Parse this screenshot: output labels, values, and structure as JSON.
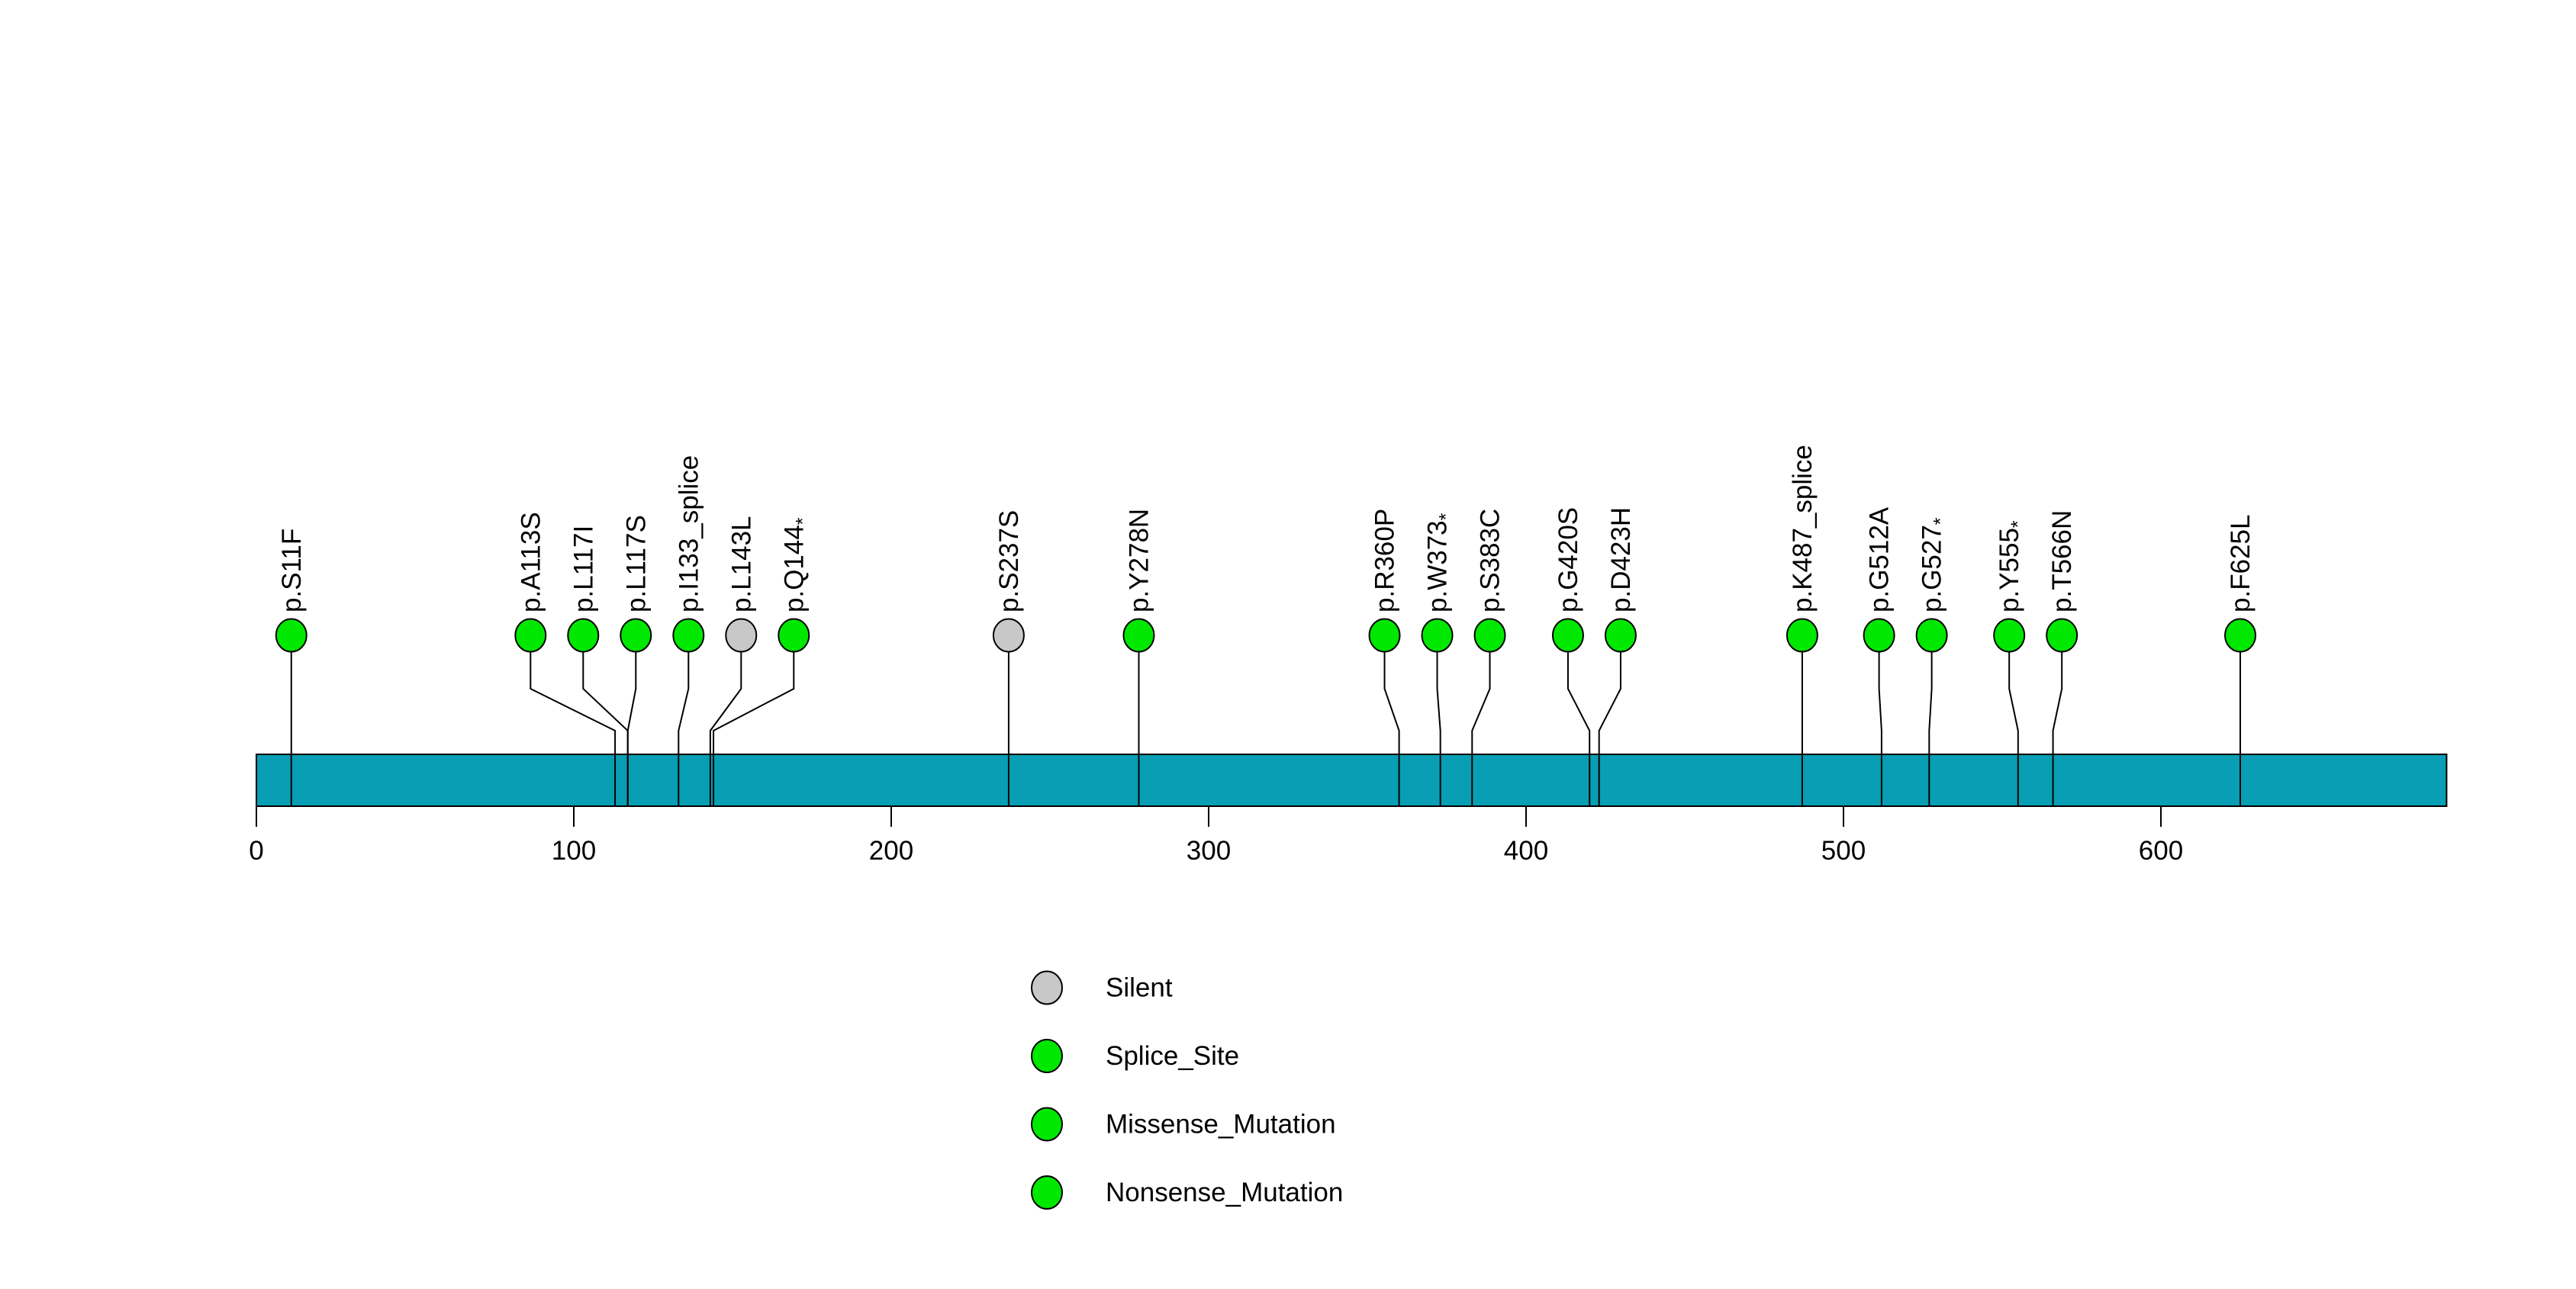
{
  "chart_data": {
    "type": "scatter",
    "subtype": "lollipop-mutation-plot",
    "title": "",
    "xlabel": "",
    "ylabel": "",
    "xlim": [
      0,
      690
    ],
    "x_ticks": [
      0,
      100,
      200,
      300,
      400,
      500,
      600
    ],
    "grid": false,
    "legend_position": "bottom-center-left",
    "background_color": "#ffffff",
    "protein_bar": {
      "start_aa": 0,
      "end_aa": 690,
      "color": "#089EB4",
      "border_color": "#000000"
    },
    "type_colors": {
      "Silent": "#C8C8C8",
      "Splice_Site": "#00E800",
      "Missense_Mutation": "#00E800",
      "Nonsense_Mutation": "#00E800"
    },
    "points": [
      {
        "label": "p.S11F",
        "suffix": "",
        "aa": 11,
        "type": "Missense_Mutation"
      },
      {
        "label": "p.A113S",
        "suffix": "",
        "aa": 113,
        "type": "Missense_Mutation"
      },
      {
        "label": "p.L117I",
        "suffix": "",
        "aa": 117,
        "type": "Missense_Mutation"
      },
      {
        "label": "p.L117S",
        "suffix": "",
        "aa": 117,
        "type": "Missense_Mutation"
      },
      {
        "label": "p.I133_splice",
        "suffix": "",
        "aa": 133,
        "type": "Splice_Site"
      },
      {
        "label": "p.L143L",
        "suffix": "",
        "aa": 143,
        "type": "Silent"
      },
      {
        "label": "p.Q144",
        "suffix": "*",
        "aa": 144,
        "type": "Nonsense_Mutation"
      },
      {
        "label": "p.S237S",
        "suffix": "",
        "aa": 237,
        "type": "Silent"
      },
      {
        "label": "p.Y278N",
        "suffix": "",
        "aa": 278,
        "type": "Missense_Mutation"
      },
      {
        "label": "p.R360P",
        "suffix": "",
        "aa": 360,
        "type": "Missense_Mutation"
      },
      {
        "label": "p.W373",
        "suffix": "*",
        "aa": 373,
        "type": "Nonsense_Mutation"
      },
      {
        "label": "p.S383C",
        "suffix": "",
        "aa": 383,
        "type": "Missense_Mutation"
      },
      {
        "label": "p.G420S",
        "suffix": "",
        "aa": 420,
        "type": "Missense_Mutation"
      },
      {
        "label": "p.D423H",
        "suffix": "",
        "aa": 423,
        "type": "Missense_Mutation"
      },
      {
        "label": "p.K487_splice",
        "suffix": "",
        "aa": 487,
        "type": "Splice_Site"
      },
      {
        "label": "p.G512A",
        "suffix": "",
        "aa": 512,
        "type": "Missense_Mutation"
      },
      {
        "label": "p.G527",
        "suffix": "*",
        "aa": 527,
        "type": "Nonsense_Mutation"
      },
      {
        "label": "p.Y555",
        "suffix": "*",
        "aa": 555,
        "type": "Nonsense_Mutation"
      },
      {
        "label": "p.T566N",
        "suffix": "",
        "aa": 566,
        "type": "Missense_Mutation"
      },
      {
        "label": "p.F625L",
        "suffix": "",
        "aa": 625,
        "type": "Missense_Mutation"
      }
    ],
    "legend": [
      {
        "label": "Silent",
        "type": "Silent"
      },
      {
        "label": "Splice_Site",
        "type": "Splice_Site"
      },
      {
        "label": "Missense_Mutation",
        "type": "Missense_Mutation"
      },
      {
        "label": "Nonsense_Mutation",
        "type": "Nonsense_Mutation"
      }
    ]
  }
}
